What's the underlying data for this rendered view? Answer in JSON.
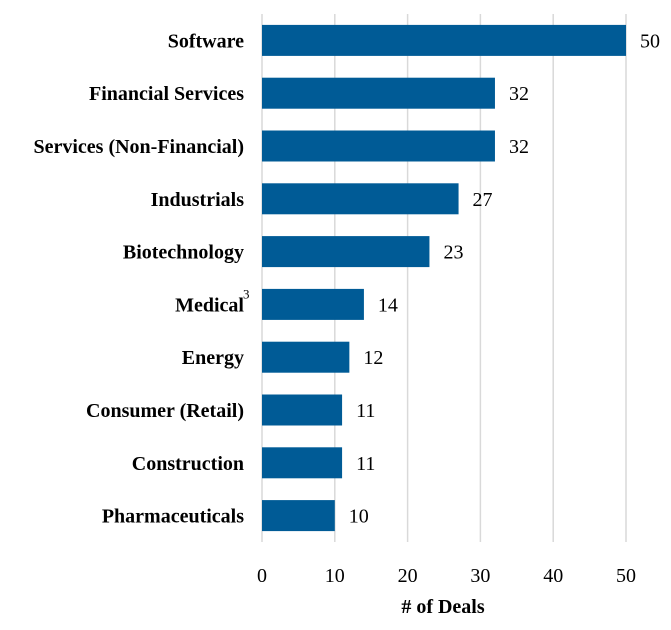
{
  "chart_data": {
    "type": "bar",
    "orientation": "horizontal",
    "categories": [
      "Software",
      "Financial Services",
      "Services (Non-Financial)",
      "Industrials",
      "Biotechnology",
      "Medical",
      "Energy",
      "Consumer (Retail)",
      "Construction",
      "Pharmaceuticals"
    ],
    "category_superscripts": [
      "",
      "",
      "",
      "",
      "",
      "3",
      "",
      "",
      "",
      ""
    ],
    "values": [
      50,
      32,
      32,
      27,
      23,
      14,
      12,
      11,
      11,
      10
    ],
    "xlabel": "# of Deals",
    "ylabel": "",
    "xlim": [
      0,
      50
    ],
    "xticks": [
      0,
      10,
      20,
      30,
      40,
      50
    ],
    "grid": true,
    "bar_color": "#005b96"
  }
}
